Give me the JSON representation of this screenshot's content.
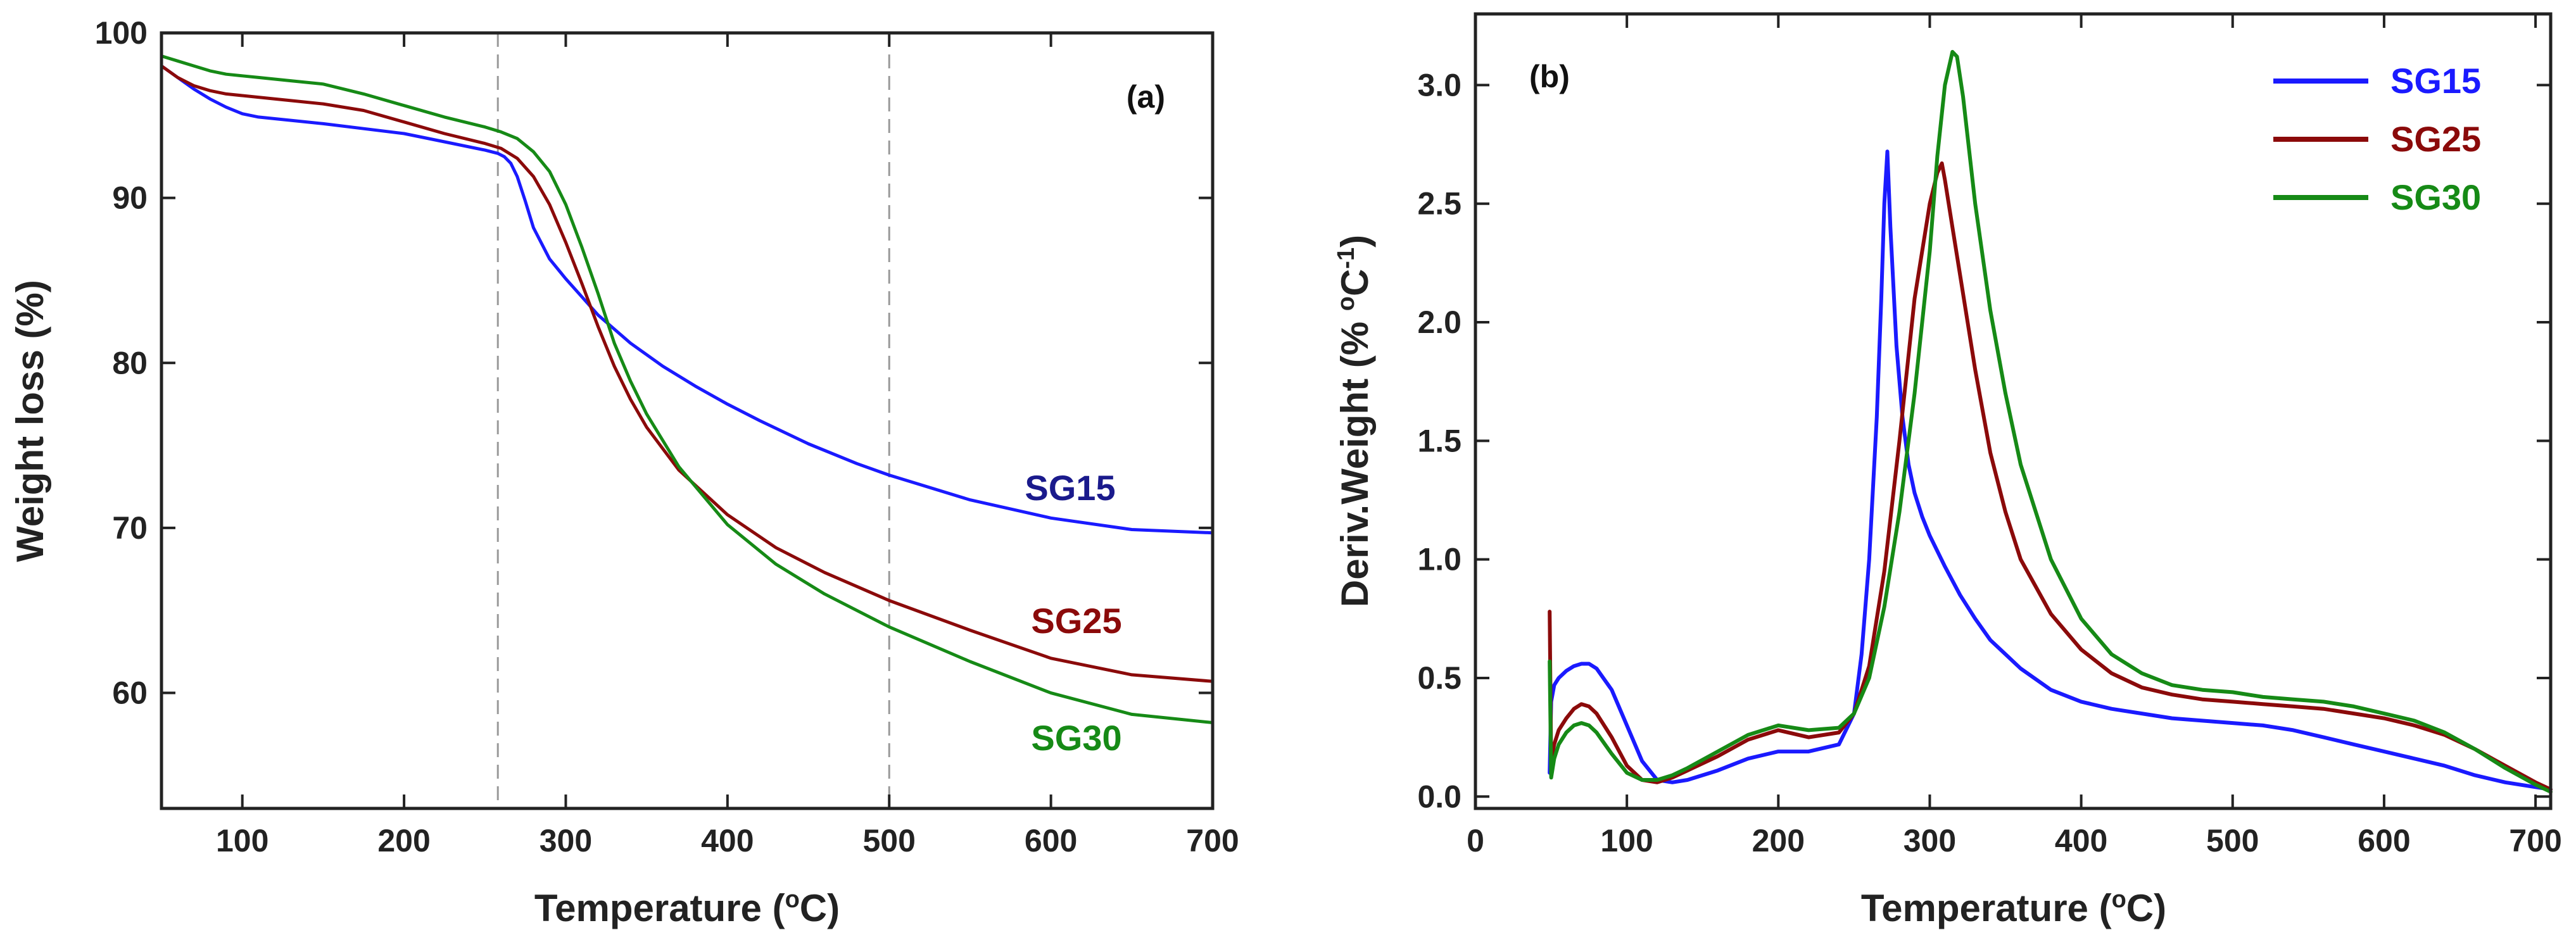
{
  "chart_data": [
    {
      "type": "line",
      "panel_label": "(a)",
      "xlabel": "Temperature (",
      "xlabel_sup": "o",
      "xlabel_unit": "C)",
      "ylabel": "Weight loss (%)",
      "xlim": [
        50,
        700
      ],
      "ylim": [
        53,
        100
      ],
      "x_ticks": [
        100,
        200,
        300,
        400,
        500,
        600,
        700
      ],
      "y_ticks": [
        60,
        70,
        80,
        90,
        100
      ],
      "vlines": [
        258,
        500
      ],
      "curve_labels": [
        "SG15",
        "SG25",
        "SG30"
      ],
      "series": [
        {
          "name": "SG15",
          "color": "#1a1aff",
          "label_color": "#1a1a8c",
          "x": [
            50,
            60,
            70,
            80,
            90,
            100,
            110,
            130,
            150,
            175,
            200,
            225,
            250,
            258,
            262,
            266,
            270,
            275,
            280,
            290,
            300,
            310,
            320,
            340,
            360,
            380,
            400,
            420,
            450,
            480,
            500,
            550,
            600,
            650,
            700
          ],
          "y": [
            98,
            97.3,
            96.6,
            96,
            95.5,
            95.1,
            94.9,
            94.7,
            94.5,
            94.2,
            93.9,
            93.4,
            92.9,
            92.7,
            92.5,
            92.1,
            91.3,
            89.8,
            88.2,
            86.3,
            85.1,
            84,
            82.9,
            81.2,
            79.8,
            78.6,
            77.5,
            76.5,
            75.1,
            73.9,
            73.2,
            71.7,
            70.6,
            69.9,
            69.7
          ]
        },
        {
          "name": "SG25",
          "color": "#8b0a0a",
          "label_color": "#8b0a0a",
          "x": [
            50,
            60,
            70,
            80,
            90,
            100,
            110,
            130,
            150,
            175,
            200,
            225,
            250,
            260,
            270,
            280,
            290,
            300,
            310,
            320,
            330,
            340,
            350,
            370,
            400,
            430,
            460,
            500,
            550,
            600,
            650,
            700
          ],
          "y": [
            98,
            97.3,
            96.8,
            96.5,
            96.3,
            96.2,
            96.1,
            95.9,
            95.7,
            95.3,
            94.6,
            93.9,
            93.3,
            93,
            92.4,
            91.3,
            89.6,
            87.3,
            84.8,
            82.2,
            79.8,
            77.8,
            76.1,
            73.5,
            70.8,
            68.8,
            67.3,
            65.6,
            63.8,
            62.1,
            61.1,
            60.7
          ]
        },
        {
          "name": "SG30",
          "color": "#168a16",
          "label_color": "#168a16",
          "x": [
            50,
            60,
            70,
            80,
            90,
            100,
            110,
            130,
            150,
            175,
            200,
            225,
            250,
            260,
            270,
            280,
            290,
            300,
            310,
            320,
            330,
            340,
            350,
            370,
            400,
            430,
            460,
            500,
            550,
            600,
            650,
            700
          ],
          "y": [
            98.6,
            98.3,
            98,
            97.7,
            97.5,
            97.4,
            97.3,
            97.1,
            96.9,
            96.3,
            95.6,
            94.9,
            94.3,
            94,
            93.6,
            92.8,
            91.6,
            89.6,
            87,
            84.2,
            81.2,
            78.9,
            76.9,
            73.7,
            70.2,
            67.8,
            66,
            64,
            61.9,
            60,
            58.7,
            58.2
          ]
        }
      ]
    },
    {
      "type": "line",
      "panel_label": "(b)",
      "xlabel": "Temperature (",
      "xlabel_sup": "o",
      "xlabel_unit": "C)",
      "ylabel": "Deriv.Weight (% ",
      "ylabel_sup_1": "o",
      "ylabel_mid": "C",
      "ylabel_sup_2": "-1",
      "ylabel_end": ")",
      "xlim": [
        0,
        710
      ],
      "ylim": [
        -0.05,
        3.3
      ],
      "x_ticks": [
        0,
        100,
        200,
        300,
        400,
        500,
        600,
        700
      ],
      "y_ticks": [
        0.0,
        0.5,
        1.0,
        1.5,
        2.0,
        2.5,
        3.0
      ],
      "legend": [
        "SG15",
        "SG25",
        "SG30"
      ],
      "legend_position": "top-right",
      "series": [
        {
          "name": "SG15",
          "color": "#1a1aff",
          "x": [
            49,
            50,
            52,
            55,
            60,
            65,
            70,
            75,
            80,
            90,
            100,
            110,
            120,
            130,
            140,
            160,
            180,
            200,
            220,
            240,
            250,
            255,
            260,
            265,
            268,
            270,
            272,
            274,
            278,
            282,
            286,
            290,
            295,
            300,
            310,
            320,
            330,
            340,
            360,
            380,
            400,
            420,
            440,
            460,
            480,
            500,
            520,
            540,
            560,
            580,
            600,
            620,
            640,
            660,
            680,
            700,
            710
          ],
          "y": [
            0.1,
            0.4,
            0.47,
            0.5,
            0.53,
            0.55,
            0.56,
            0.56,
            0.54,
            0.45,
            0.3,
            0.15,
            0.07,
            0.06,
            0.07,
            0.11,
            0.16,
            0.19,
            0.19,
            0.22,
            0.35,
            0.6,
            1.0,
            1.6,
            2.1,
            2.5,
            2.72,
            2.4,
            1.9,
            1.6,
            1.4,
            1.28,
            1.18,
            1.1,
            0.97,
            0.85,
            0.75,
            0.66,
            0.54,
            0.45,
            0.4,
            0.37,
            0.35,
            0.33,
            0.32,
            0.31,
            0.3,
            0.28,
            0.25,
            0.22,
            0.19,
            0.16,
            0.13,
            0.09,
            0.06,
            0.04,
            0.03
          ]
        },
        {
          "name": "SG25",
          "color": "#8b0a0a",
          "x": [
            49,
            50,
            52,
            55,
            60,
            65,
            70,
            75,
            80,
            90,
            100,
            110,
            120,
            130,
            140,
            160,
            180,
            200,
            220,
            240,
            250,
            260,
            270,
            280,
            290,
            300,
            305,
            308,
            310,
            315,
            320,
            330,
            340,
            350,
            360,
            380,
            400,
            420,
            440,
            460,
            480,
            500,
            520,
            540,
            560,
            580,
            600,
            620,
            640,
            660,
            680,
            700,
            710
          ],
          "y": [
            0.78,
            0.15,
            0.22,
            0.28,
            0.33,
            0.37,
            0.39,
            0.38,
            0.35,
            0.25,
            0.13,
            0.07,
            0.06,
            0.08,
            0.11,
            0.17,
            0.24,
            0.28,
            0.25,
            0.27,
            0.35,
            0.55,
            0.95,
            1.5,
            2.1,
            2.5,
            2.63,
            2.67,
            2.6,
            2.4,
            2.2,
            1.8,
            1.45,
            1.2,
            1.0,
            0.77,
            0.62,
            0.52,
            0.46,
            0.43,
            0.41,
            0.4,
            0.39,
            0.38,
            0.37,
            0.35,
            0.33,
            0.3,
            0.26,
            0.2,
            0.13,
            0.06,
            0.03
          ]
        },
        {
          "name": "SG30",
          "color": "#168a16",
          "x": [
            49,
            50,
            52,
            55,
            60,
            65,
            70,
            75,
            80,
            90,
            100,
            110,
            120,
            130,
            140,
            160,
            180,
            200,
            220,
            240,
            250,
            260,
            270,
            280,
            290,
            300,
            305,
            310,
            315,
            318,
            322,
            330,
            340,
            350,
            360,
            380,
            400,
            420,
            440,
            460,
            480,
            500,
            520,
            540,
            560,
            580,
            600,
            620,
            640,
            660,
            680,
            700,
            710
          ],
          "y": [
            0.57,
            0.08,
            0.16,
            0.22,
            0.27,
            0.3,
            0.31,
            0.3,
            0.27,
            0.18,
            0.1,
            0.07,
            0.07,
            0.09,
            0.12,
            0.19,
            0.26,
            0.3,
            0.28,
            0.29,
            0.35,
            0.5,
            0.8,
            1.2,
            1.7,
            2.3,
            2.7,
            3.0,
            3.14,
            3.12,
            2.95,
            2.5,
            2.05,
            1.7,
            1.4,
            1.0,
            0.75,
            0.6,
            0.52,
            0.47,
            0.45,
            0.44,
            0.42,
            0.41,
            0.4,
            0.38,
            0.35,
            0.32,
            0.27,
            0.2,
            0.12,
            0.05,
            0.02
          ]
        }
      ]
    }
  ]
}
